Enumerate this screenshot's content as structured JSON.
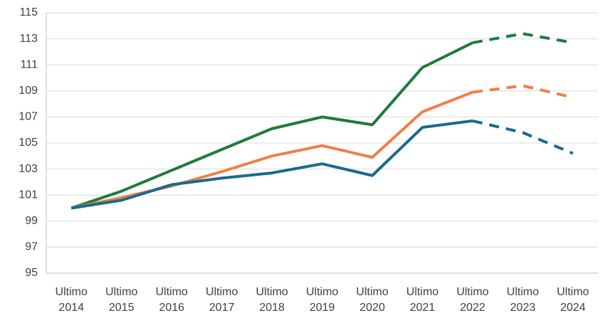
{
  "chart_data": {
    "type": "line",
    "categories": [
      "Ultimo 2014",
      "Ultimo 2015",
      "Ultimo 2016",
      "Ultimo 2017",
      "Ultimo 2018",
      "Ultimo 2019",
      "Ultimo 2020",
      "Ultimo 2021",
      "Ultimo 2022",
      "Ultimo 2023",
      "Ultimo 2024"
    ],
    "series": [
      {
        "color": "#1e7b3a",
        "values": [
          100,
          101.3,
          102.9,
          104.5,
          106.1,
          107.0,
          106.4,
          110.8,
          112.7,
          113.4,
          112.7
        ]
      },
      {
        "color": "#f07f45",
        "values": [
          100,
          100.8,
          101.7,
          102.8,
          104.0,
          104.8,
          103.9,
          107.4,
          108.9,
          109.4,
          108.5
        ]
      },
      {
        "color": "#1a6a8e",
        "values": [
          100,
          100.6,
          101.8,
          102.3,
          102.7,
          103.4,
          102.5,
          106.2,
          106.7,
          105.8,
          104.2
        ]
      }
    ],
    "dashed_from_index": 8,
    "ylim": [
      95,
      115
    ],
    "yticks": [
      95,
      97,
      99,
      101,
      103,
      105,
      107,
      109,
      111,
      113,
      115
    ],
    "grid": true
  }
}
